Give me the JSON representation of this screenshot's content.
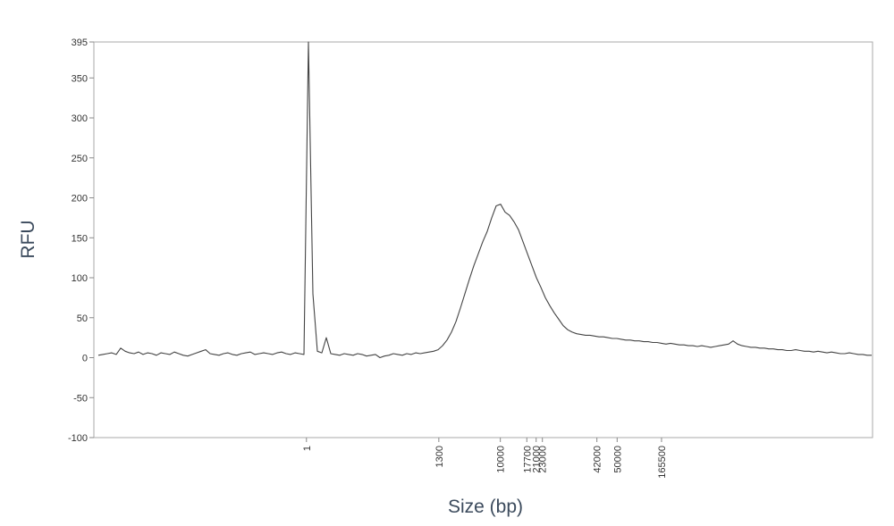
{
  "chart_data": {
    "type": "line",
    "y_label": "RFU",
    "x_label": "Size (bp)",
    "color": "#444444",
    "ylim": [
      -100,
      395
    ],
    "yticks": [
      395,
      350,
      300,
      250,
      200,
      150,
      100,
      50,
      0,
      -50,
      -100
    ],
    "xticks": [
      1,
      1300,
      10000,
      17700,
      21000,
      23000,
      42000,
      50000,
      165500
    ],
    "values": [
      3,
      4,
      5,
      6,
      4,
      12,
      8,
      6,
      5,
      7,
      4,
      6,
      5,
      3,
      6,
      5,
      4,
      7,
      5,
      3,
      2,
      4,
      6,
      8,
      10,
      5,
      4,
      3,
      5,
      6,
      4,
      3,
      5,
      6,
      7,
      4,
      5,
      6,
      5,
      4,
      6,
      7,
      5,
      4,
      6,
      5,
      4,
      395,
      80,
      8,
      6,
      25,
      5,
      4,
      3,
      5,
      4,
      3,
      5,
      4,
      2,
      3,
      4,
      0,
      2,
      3,
      5,
      4,
      3,
      5,
      4,
      6,
      5,
      6,
      7,
      8,
      10,
      15,
      22,
      32,
      45,
      62,
      80,
      98,
      115,
      130,
      145,
      158,
      175,
      190,
      192,
      182,
      178,
      170,
      160,
      145,
      130,
      115,
      100,
      88,
      75,
      65,
      56,
      48,
      40,
      35,
      32,
      30,
      29,
      28,
      28,
      27,
      26,
      26,
      25,
      24,
      24,
      23,
      22,
      22,
      21,
      21,
      20,
      20,
      19,
      19,
      18,
      17,
      18,
      17,
      16,
      16,
      15,
      15,
      14,
      15,
      14,
      13,
      14,
      15,
      16,
      17,
      21,
      17,
      15,
      14,
      13,
      13,
      12,
      12,
      11,
      11,
      10,
      10,
      9,
      9,
      10,
      9,
      8,
      8,
      7,
      8,
      7,
      6,
      7,
      6,
      5,
      5,
      6,
      5,
      4,
      4,
      3,
      3
    ]
  }
}
